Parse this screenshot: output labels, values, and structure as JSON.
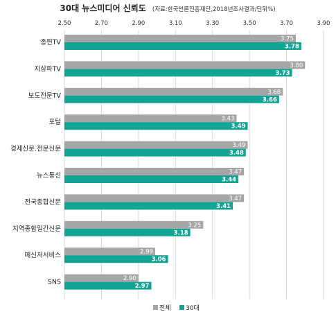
{
  "chart_data": {
    "type": "bar",
    "orientation": "horizontal",
    "title": "30대 뉴스미디어 신뢰도",
    "subtitle": "(자료:한국언론진흥재단,2018년조사결과/단위%)",
    "xlim": [
      2.5,
      3.9
    ],
    "ticks": [
      "2.50",
      "2.70",
      "2.90",
      "3.10",
      "3.30",
      "3.50",
      "3.70",
      "3.90"
    ],
    "tick_values": [
      2.5,
      2.7,
      2.9,
      3.1,
      3.3,
      3.5,
      3.7,
      3.9
    ],
    "grid": true,
    "legend_position": "bottom",
    "categories": [
      "종편TV",
      "지상파TV",
      "보도전문TV",
      "포털",
      "경제신문.전문신문",
      "뉴스통신",
      "전국종합신문",
      "지역종합일간신문",
      "메신저서비스",
      "SNS"
    ],
    "series": [
      {
        "name": "전체",
        "color": "#a6a6a6",
        "values": [
          3.75,
          3.8,
          3.68,
          3.43,
          3.49,
          3.47,
          3.47,
          3.25,
          2.99,
          2.9
        ]
      },
      {
        "name": "30대",
        "color": "#12a595",
        "values": [
          3.78,
          3.73,
          3.66,
          3.49,
          3.48,
          3.44,
          3.41,
          3.18,
          3.06,
          2.97
        ]
      }
    ]
  }
}
